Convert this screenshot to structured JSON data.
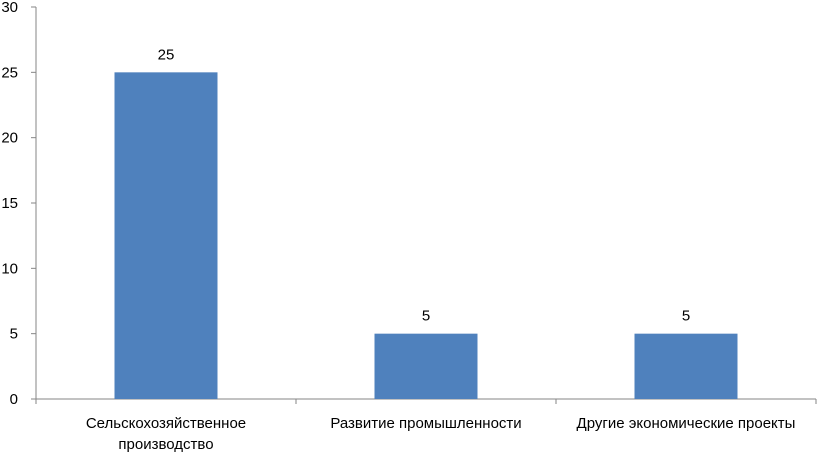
{
  "chart_data": {
    "type": "bar",
    "categories": [
      [
        "Сельскохозяйственное",
        "производство"
      ],
      [
        "Развитие промышленности"
      ],
      [
        "Другие экономические проекты"
      ]
    ],
    "values": [
      25,
      5,
      5
    ],
    "data_labels": [
      "25",
      "5",
      "5"
    ],
    "ylim": [
      0,
      30
    ],
    "yticks": [
      "0",
      "5",
      "10",
      "15",
      "20",
      "25",
      "30"
    ],
    "title": "",
    "xlabel": "",
    "ylabel": "",
    "grid": false,
    "legend": "none",
    "bar_color": "#4F81BD",
    "axis_color": "#868686"
  }
}
